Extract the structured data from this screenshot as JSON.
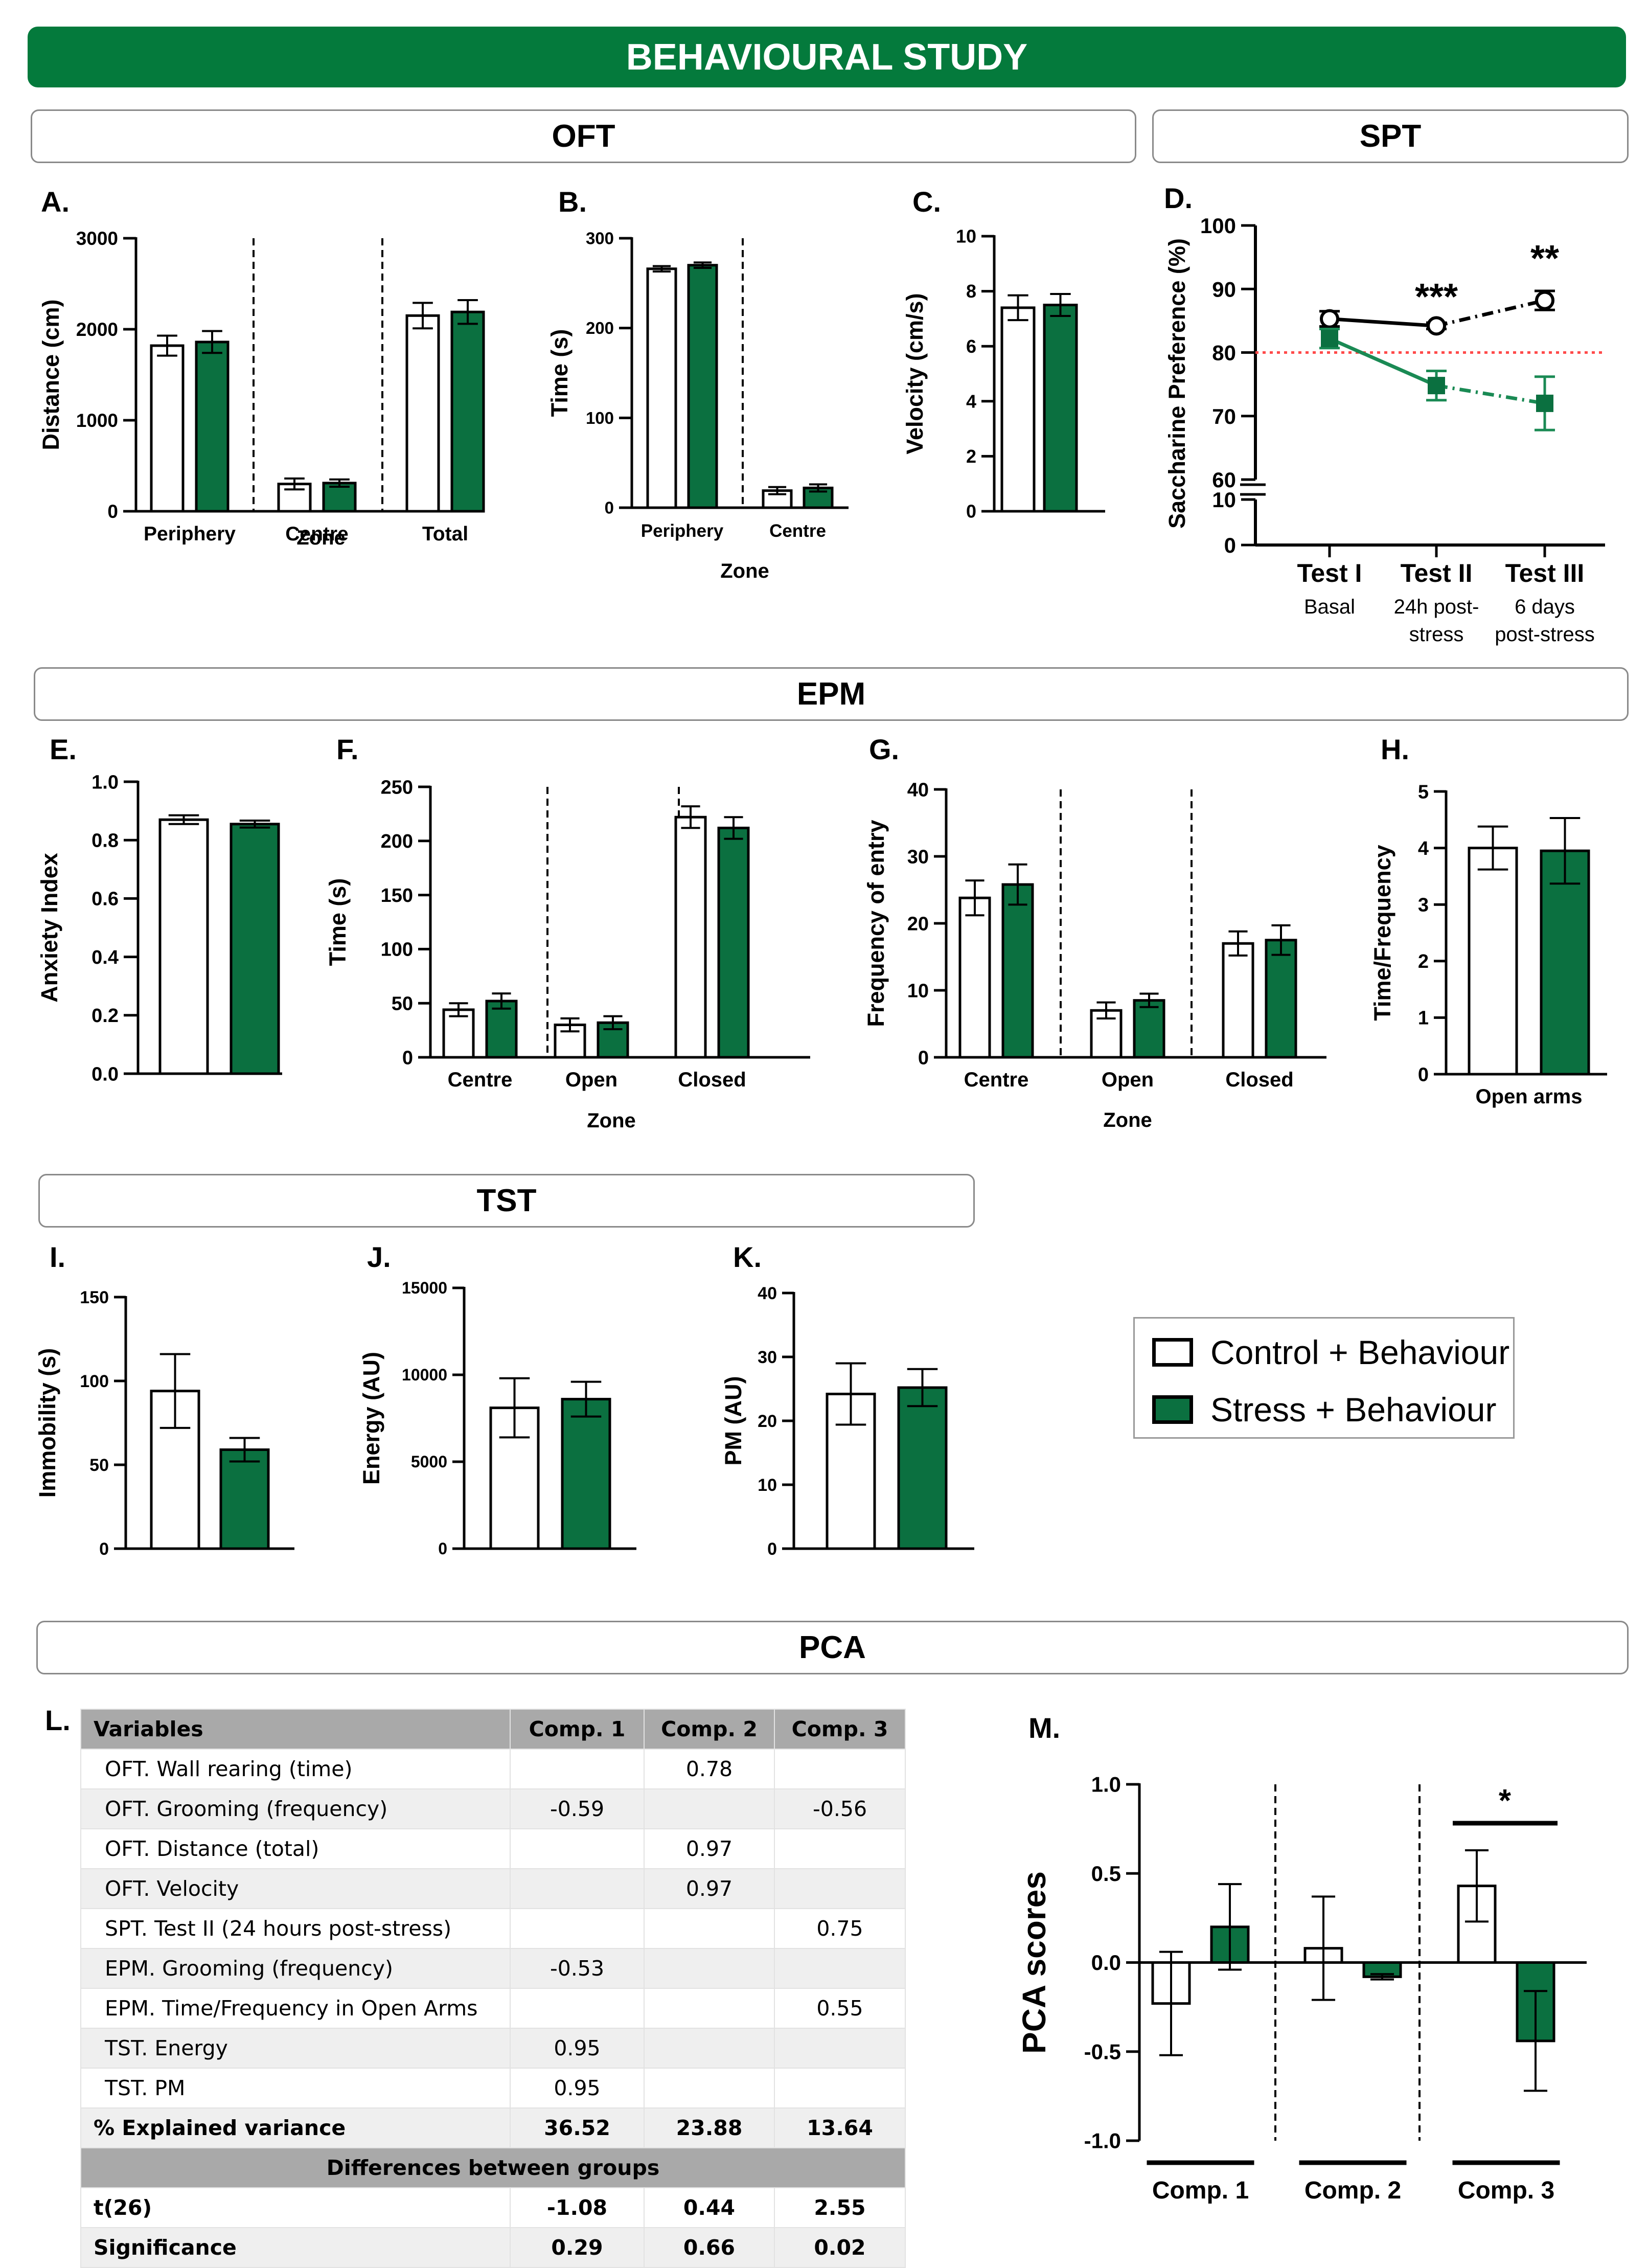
{
  "banner": "BEHAVIOURAL STUDY",
  "sections": {
    "oft": "OFT",
    "spt": "SPT",
    "epm": "EPM",
    "tst": "TST",
    "pca": "PCA"
  },
  "colors": {
    "control": "#ffffff",
    "stress": "#0b7040",
    "banner": "#047a3c",
    "spt_stress_line": "#1a8a54",
    "threshold": "#ff4a4a"
  },
  "legend": {
    "control": "Control + Behaviour",
    "stress": "Stress + Behaviour"
  },
  "table": {
    "headers": [
      "Variables",
      "Comp. 1",
      "Comp. 2",
      "Comp. 3"
    ],
    "rows": [
      [
        "OFT. Wall rearing (time)",
        "",
        "0.78",
        ""
      ],
      [
        "OFT. Grooming (frequency)",
        "-0.59",
        "",
        "-0.56"
      ],
      [
        "OFT. Distance (total)",
        "",
        "0.97",
        ""
      ],
      [
        "OFT. Velocity",
        "",
        "0.97",
        ""
      ],
      [
        "SPT. Test II (24 hours post-stress)",
        "",
        "",
        "0.75"
      ],
      [
        "EPM. Grooming (frequency)",
        "-0.53",
        "",
        ""
      ],
      [
        "EPM. Time/Frequency in Open Arms",
        "",
        "",
        "0.55"
      ],
      [
        "TST. Energy",
        "0.95",
        "",
        ""
      ],
      [
        "TST. PM",
        "0.95",
        "",
        ""
      ]
    ],
    "variance": [
      "% Explained variance",
      "36.52",
      "23.88",
      "13.64"
    ],
    "subheader": "Differences between groups",
    "t_row": [
      "t(26)",
      "-1.08",
      "0.44",
      "2.55"
    ],
    "sig_row": [
      "Significance",
      "0.29",
      "0.66",
      "0.02"
    ]
  },
  "chart_data": [
    {
      "id": "A",
      "panel": "A.",
      "type": "bar",
      "ylabel": "Distance (cm)",
      "xlabel": "Zone",
      "ylim": [
        0,
        3000
      ],
      "yticks": [
        "0",
        "1000",
        "2000",
        "3000"
      ],
      "categories": [
        "Periphery",
        "Centre",
        "Total"
      ],
      "dividers": true,
      "series": [
        {
          "values": [
            1820,
            300,
            2150
          ],
          "err": [
            110,
            60,
            140
          ]
        },
        {
          "values": [
            1860,
            310,
            2190
          ],
          "err": [
            120,
            40,
            130
          ]
        }
      ]
    },
    {
      "id": "B",
      "panel": "B.",
      "type": "bar",
      "ylabel": "Time (s)",
      "xlabel": "Zone",
      "ylim": [
        0,
        300
      ],
      "yticks": [
        "0",
        "100",
        "200",
        "300"
      ],
      "categories": [
        "Periphery",
        "Centre"
      ],
      "dividers": true,
      "series": [
        {
          "values": [
            266,
            19
          ],
          "err": [
            3,
            4
          ]
        },
        {
          "values": [
            270,
            22
          ],
          "err": [
            3,
            4
          ]
        }
      ]
    },
    {
      "id": "C",
      "panel": "C.",
      "type": "bar",
      "ylabel": "Velocity (cm/s)",
      "xlabel": "",
      "ylim": [
        0,
        10
      ],
      "yticks": [
        "0",
        "2",
        "4",
        "6",
        "8",
        "10"
      ],
      "categories": [
        ""
      ],
      "dividers": false,
      "series": [
        {
          "values": [
            7.4
          ],
          "err": [
            0.45
          ]
        },
        {
          "values": [
            7.5
          ],
          "err": [
            0.4
          ]
        }
      ]
    },
    {
      "id": "D",
      "panel": "D.",
      "type": "line",
      "ylabel": "Saccharine Preference (%)",
      "xlabel": "",
      "yticks_upper": [
        "60",
        "70",
        "80",
        "90",
        "100"
      ],
      "yticks_lower": [
        "0",
        "10"
      ],
      "categories": [
        "Test I",
        "Test II",
        "Test III"
      ],
      "sublabels": [
        "Basal",
        "24h post-\nstress",
        "6 days\npost-stress"
      ],
      "threshold": 80,
      "series": [
        {
          "values": [
            85.3,
            84.2,
            88.2
          ],
          "err": [
            1.2,
            0.5,
            1.5
          ]
        },
        {
          "values": [
            82.2,
            74.8,
            72.0
          ],
          "err": [
            1.5,
            2.3,
            4.2
          ]
        }
      ],
      "annotations": [
        {
          "at": "Test II",
          "text": "***"
        },
        {
          "at": "Test III",
          "text": "**"
        }
      ]
    },
    {
      "id": "E",
      "panel": "E.",
      "type": "bar",
      "ylabel": "Anxiety Index",
      "xlabel": "",
      "ylim": [
        0,
        1
      ],
      "yticks": [
        "0.0",
        "0.2",
        "0.4",
        "0.6",
        "0.8",
        "1.0"
      ],
      "categories": [
        ""
      ],
      "dividers": false,
      "series": [
        {
          "values": [
            0.87
          ],
          "err": [
            0.015
          ]
        },
        {
          "values": [
            0.855
          ],
          "err": [
            0.012
          ]
        }
      ]
    },
    {
      "id": "F",
      "panel": "F.",
      "type": "bar",
      "ylabel": "Time (s)",
      "xlabel": "Zone",
      "ylim": [
        0,
        250
      ],
      "yticks": [
        "0",
        "50",
        "100",
        "150",
        "200",
        "250"
      ],
      "categories": [
        "Centre",
        "Open",
        "Closed"
      ],
      "dividers": true,
      "series": [
        {
          "values": [
            44,
            30,
            222
          ],
          "err": [
            6,
            6,
            10
          ]
        },
        {
          "values": [
            52,
            32,
            212
          ],
          "err": [
            7,
            6,
            10
          ]
        }
      ]
    },
    {
      "id": "G",
      "panel": "G.",
      "type": "bar",
      "ylabel": "Frequency of entry",
      "xlabel": "Zone",
      "ylim": [
        0,
        40
      ],
      "yticks": [
        "0",
        "10",
        "20",
        "30",
        "40"
      ],
      "categories": [
        "Centre",
        "Open",
        "Closed"
      ],
      "dividers": true,
      "series": [
        {
          "values": [
            23.8,
            7.0,
            17.0
          ],
          "err": [
            2.6,
            1.2,
            1.8
          ]
        },
        {
          "values": [
            25.8,
            8.5,
            17.5
          ],
          "err": [
            3.0,
            1.0,
            2.2
          ]
        }
      ]
    },
    {
      "id": "H",
      "panel": "H.",
      "type": "bar",
      "ylabel": "Time/Frequency",
      "xlabel": "",
      "ylim": [
        0,
        5
      ],
      "yticks": [
        "0",
        "1",
        "2",
        "3",
        "4",
        "5"
      ],
      "categories": [
        "Open arms"
      ],
      "dividers": false,
      "series": [
        {
          "values": [
            4.0
          ],
          "err": [
            0.38
          ]
        },
        {
          "values": [
            3.95
          ],
          "err": [
            0.58
          ]
        }
      ]
    },
    {
      "id": "I",
      "panel": "I.",
      "type": "bar",
      "ylabel": "Immobility (s)",
      "xlabel": "",
      "ylim": [
        0,
        150
      ],
      "yticks": [
        "0",
        "50",
        "100",
        "150"
      ],
      "categories": [
        ""
      ],
      "dividers": false,
      "series": [
        {
          "values": [
            94
          ],
          "err": [
            22
          ]
        },
        {
          "values": [
            59
          ],
          "err": [
            7
          ]
        }
      ]
    },
    {
      "id": "J",
      "panel": "J.",
      "type": "bar",
      "ylabel": "Energy (AU)",
      "xlabel": "",
      "ylim": [
        0,
        15000
      ],
      "yticks": [
        "0",
        "5000",
        "10000",
        "15000"
      ],
      "categories": [
        ""
      ],
      "dividers": false,
      "series": [
        {
          "values": [
            8100
          ],
          "err": [
            1700
          ]
        },
        {
          "values": [
            8600
          ],
          "err": [
            1000
          ]
        }
      ]
    },
    {
      "id": "K",
      "panel": "K.",
      "type": "bar",
      "ylabel": "PM (AU)",
      "xlabel": "",
      "ylim": [
        0,
        40
      ],
      "yticks": [
        "0",
        "10",
        "20",
        "30",
        "40"
      ],
      "categories": [
        ""
      ],
      "dividers": false,
      "series": [
        {
          "values": [
            24.2
          ],
          "err": [
            4.8
          ]
        },
        {
          "values": [
            25.2
          ],
          "err": [
            2.9
          ]
        }
      ]
    },
    {
      "id": "M",
      "panel": "M.",
      "type": "bar",
      "ylabel": "PCA scores",
      "xlabel": "",
      "ylim": [
        -1,
        1
      ],
      "yticks": [
        "-1.0",
        "-0.5",
        "0.0",
        "0.5",
        "1.0"
      ],
      "categories": [
        "Comp. 1",
        "Comp. 2",
        "Comp. 3"
      ],
      "dividers": true,
      "series": [
        {
          "values": [
            -0.23,
            0.08,
            0.43
          ],
          "err": [
            0.29,
            0.29,
            0.2
          ]
        },
        {
          "values": [
            0.2,
            -0.08,
            -0.44
          ],
          "err": [
            0.24,
            0.015,
            0.28
          ]
        }
      ],
      "annotations": [
        {
          "at": "Comp. 3",
          "text": "*"
        }
      ]
    }
  ]
}
